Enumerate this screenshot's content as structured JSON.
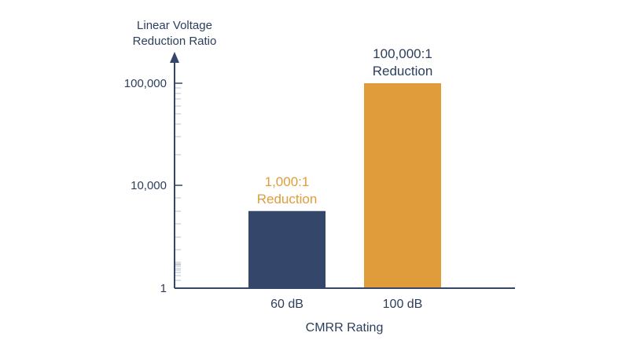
{
  "chart_data": {
    "type": "bar",
    "ylabel_lines": [
      "Linear Voltage",
      "Reduction Ratio"
    ],
    "xlabel": "CMRR Rating",
    "y_scale": "log",
    "ylim": [
      1,
      100000
    ],
    "y_ticks": [
      {
        "value": 1,
        "label": "1"
      },
      {
        "value": 10000,
        "label": "10,000"
      },
      {
        "value": 100000,
        "label": "100,000"
      }
    ],
    "categories": [
      "60 dB",
      "100 dB"
    ],
    "values": [
      1000,
      100000
    ],
    "colors": [
      "#34466a",
      "#e09c3a"
    ],
    "annotations": [
      {
        "lines": [
          "1,000:1",
          "Reduction"
        ],
        "color": "#e09c3a"
      },
      {
        "lines": [
          "100,000:1",
          "Reduction"
        ],
        "color": "#2c3e5c"
      }
    ],
    "grid": false,
    "legend": "none"
  }
}
